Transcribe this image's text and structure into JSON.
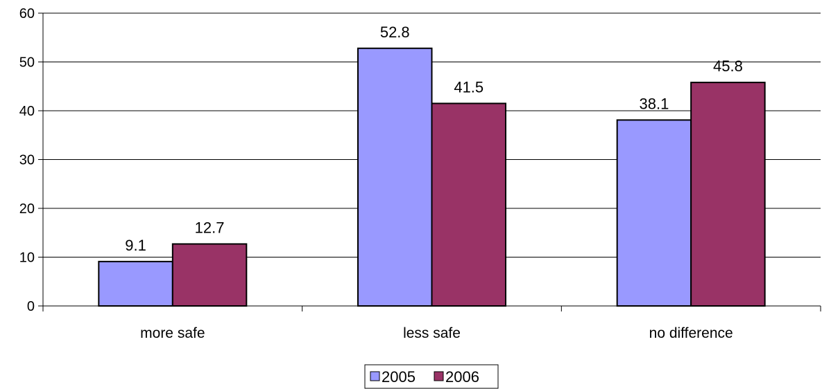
{
  "chart_data": {
    "type": "bar",
    "categories": [
      "more safe",
      "less safe",
      "no difference"
    ],
    "series": [
      {
        "name": "2005",
        "values": [
          9.1,
          52.8,
          38.1
        ],
        "color": "#9999ff"
      },
      {
        "name": "2006",
        "values": [
          12.7,
          41.5,
          45.8
        ],
        "color": "#993366"
      }
    ],
    "ylim": [
      0,
      60
    ],
    "yticks": [
      "0",
      "10",
      "20",
      "30",
      "40",
      "50",
      "60"
    ],
    "data_labels": true,
    "grid": true,
    "legend_position": "bottom"
  }
}
